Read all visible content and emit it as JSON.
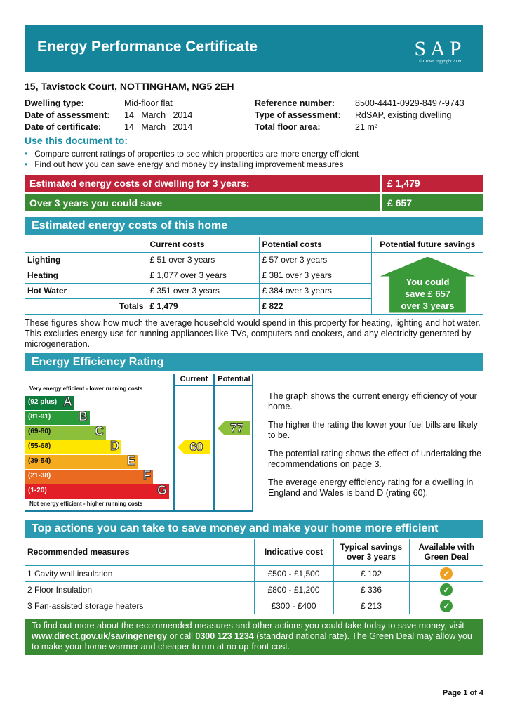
{
  "header": {
    "title": "Energy Performance Certificate",
    "logo_text": "SAP",
    "logo_copyright": "© Crown copyright 2009"
  },
  "address": "15, Tavistock Court, NOTTINGHAM, NG5 2EH",
  "details": {
    "dwelling_type_label": "Dwelling type:",
    "dwelling_type": "Mid-floor flat",
    "date_assessment_label": "Date of assessment:",
    "date_assessment": "14   March   2014",
    "date_certificate_label": "Date of certificate:",
    "date_certificate": "14   March   2014",
    "reference_label": "Reference number:",
    "reference": "8500-4441-0929-8497-9743",
    "type_assessment_label": "Type of assessment:",
    "type_assessment": "RdSAP, existing dwelling",
    "floor_area_label": "Total floor area:",
    "floor_area": "21 m²"
  },
  "use": {
    "title": "Use this document to:",
    "bullets": [
      "Compare current ratings of properties to see which properties are more energy efficient",
      "Find out how you can save energy and money by installing improvement measures"
    ]
  },
  "costs_bar": {
    "label": "Estimated energy costs of dwelling for 3 years:",
    "value": "£ 1,479",
    "color": "#c0223a"
  },
  "save_bar": {
    "label": "Over 3 years you could save",
    "value": "£ 657",
    "color": "#3a8a34"
  },
  "costs_section": {
    "title": "Estimated energy costs of this home",
    "headers": [
      "",
      "Current costs",
      "Potential costs",
      "Potential future savings"
    ],
    "rows": [
      [
        "Lighting",
        "£ 51 over 3 years",
        "£ 57 over 3 years"
      ],
      [
        "Heating",
        "£ 1,077 over 3 years",
        "£ 381 over 3 years"
      ],
      [
        "Hot Water",
        "£ 351 over 3 years",
        "£ 384 over 3 years"
      ]
    ],
    "totals": [
      "Totals",
      "£ 1,479",
      "£ 822"
    ],
    "savings_house": "You could save £ 657 over 3 years",
    "note": "These figures show how much the average household would spend in this property for heating, lighting and hot water. This excludes energy use for running appliances like TVs, computers and cookers, and any electricity generated by microgeneration."
  },
  "rating": {
    "title": "Energy Efficiency Rating",
    "col_current": "Current",
    "col_potential": "Potential",
    "top_label": "Very energy efficient - lower running costs",
    "bottom_label": "Not energy efficient - higher running costs",
    "bands": [
      {
        "range": "(92 plus)",
        "letter": "A",
        "color": "#107c3c"
      },
      {
        "range": "(81-91)",
        "letter": "B",
        "color": "#2a9a3a"
      },
      {
        "range": "(69-80)",
        "letter": "C",
        "color": "#8cc03a"
      },
      {
        "range": "(55-68)",
        "letter": "D",
        "color": "#ffe600"
      },
      {
        "range": "(39-54)",
        "letter": "E",
        "color": "#f5ab1e"
      },
      {
        "range": "(21-38)",
        "letter": "F",
        "color": "#ea6a22"
      },
      {
        "range": "(1-20)",
        "letter": "G",
        "color": "#e21f26"
      }
    ],
    "current": "60",
    "potential": "77",
    "text": [
      "The graph shows the current energy efficiency of your home.",
      "The higher the rating the lower your fuel bills are likely to be.",
      "The potential rating shows the effect of undertaking the recommendations on page 3.",
      "The average energy efficiency rating for a dwelling in England and Wales is band D (rating 60)."
    ]
  },
  "actions": {
    "title": "Top actions you can take to save money and make your home more efficient",
    "headers": [
      "Recommended measures",
      "Indicative cost",
      "Typical savings over 3 years",
      "Available with Green Deal"
    ],
    "rows": [
      [
        "1  Cavity wall insulation",
        "£500 - £1,500",
        "£ 102",
        "orange-check-icon"
      ],
      [
        "2  Floor Insulation",
        "£800 - £1,200",
        "£ 336",
        "green-check-icon"
      ],
      [
        "3  Fan-assisted storage heaters",
        "£300 - £400",
        "£ 213",
        "green-check-icon"
      ]
    ]
  },
  "footer_box": {
    "t1": "To find out more about the recommended measures and other actions you could take today to save money, visit ",
    "link": "www.direct.gov.uk/savingenergy",
    "t2": " or call ",
    "phone": "0300 123 1234",
    "t3": " (standard national rate). The Green Deal may allow you to make your home warmer and cheaper to run at no up-front cost."
  },
  "page": "Page 1 of 4"
}
